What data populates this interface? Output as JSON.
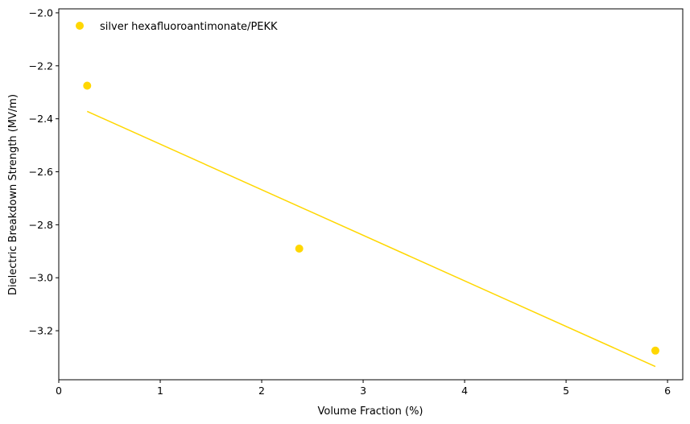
{
  "chart_data": {
    "type": "scatter",
    "xlabel": "Volume Fraction (%)",
    "ylabel": "Dielectric Breakdown Strength (MV/m)",
    "xlim": [
      0,
      6.15
    ],
    "ylim": [
      -3.385,
      -1.985
    ],
    "xticks": [
      0,
      1,
      2,
      3,
      4,
      5,
      6
    ],
    "yticks": [
      -3.2,
      -3.0,
      -2.8,
      -2.6,
      -2.4,
      -2.2,
      -2.0
    ],
    "xtick_labels": [
      "0",
      "1",
      "2",
      "3",
      "4",
      "5",
      "6"
    ],
    "ytick_labels": [
      "−3.2",
      "−3.0",
      "−2.8",
      "−2.6",
      "−2.4",
      "−2.2",
      "−2.0"
    ],
    "grid": false,
    "legend_position": "top-left",
    "series": [
      {
        "name": "silver hexafluoroantimonate/PEKK",
        "color": "#FFD700",
        "points": [
          {
            "x": 0.28,
            "y": -2.275
          },
          {
            "x": 2.37,
            "y": -2.89
          },
          {
            "x": 5.88,
            "y": -3.275
          }
        ],
        "fit_line": {
          "x": [
            0.28,
            5.88
          ],
          "y": [
            -2.372,
            -3.335
          ]
        }
      }
    ]
  }
}
